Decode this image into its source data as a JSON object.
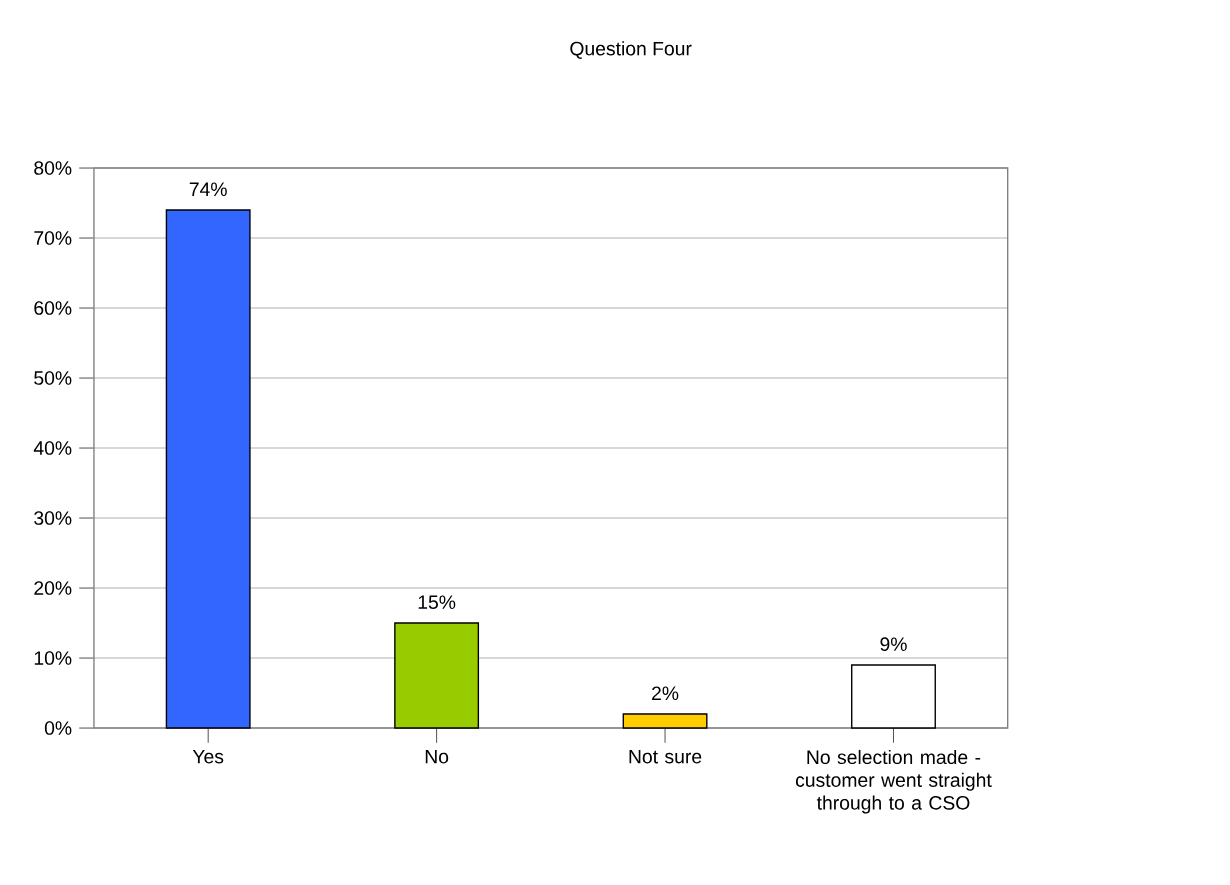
{
  "chart_data": {
    "type": "bar",
    "title": "Question Four",
    "categories": [
      "Yes",
      "No",
      "Not sure",
      "No selection made - customer went straight through to a CSO"
    ],
    "values": [
      74,
      15,
      2,
      9
    ],
    "colors": [
      "#3366ff",
      "#99cc00",
      "#ffcc00",
      "#ffffff"
    ],
    "value_labels": [
      "74%",
      "15%",
      "2%",
      "9%"
    ],
    "ylim": [
      0,
      80
    ],
    "yticks": [
      {
        "value": 0,
        "label": "0%"
      },
      {
        "value": 10,
        "label": "10%"
      },
      {
        "value": 20,
        "label": "20%"
      },
      {
        "value": 30,
        "label": "30%"
      },
      {
        "value": 40,
        "label": "40%"
      },
      {
        "value": 50,
        "label": "50%"
      },
      {
        "value": 60,
        "label": "60%"
      },
      {
        "value": 70,
        "label": "70%"
      },
      {
        "value": 80,
        "label": "80%"
      }
    ],
    "grid": "y"
  }
}
